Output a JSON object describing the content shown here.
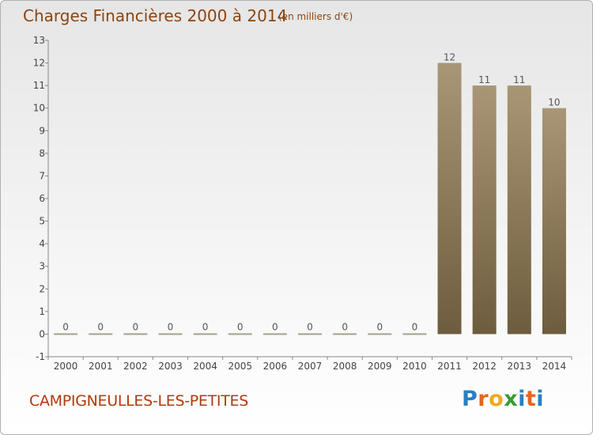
{
  "header": {
    "title": "Charges Financières 2000 à 2014",
    "subtitle": "(en milliers d'€)"
  },
  "footer": {
    "place_name": "CAMPIGNEULLES-LES-PETITES",
    "logo_letters": [
      "P",
      "r",
      "o",
      "x",
      "i",
      "t",
      "i"
    ],
    "logo_colors": [
      "#2a7fc1",
      "#e8641b",
      "#f2a81d",
      "#3a9a36",
      "#2a7fc1",
      "#e8641b",
      "#2a7fc1"
    ]
  },
  "chart_data": {
    "type": "bar",
    "title": "Charges Financières 2000 à 2014",
    "subtitle": "(en milliers d'€)",
    "categories": [
      "2000",
      "2001",
      "2002",
      "2003",
      "2004",
      "2005",
      "2006",
      "2007",
      "2008",
      "2009",
      "2010",
      "2011",
      "2012",
      "2013",
      "2014"
    ],
    "values": [
      0,
      0,
      0,
      0,
      0,
      0,
      0,
      0,
      0,
      0,
      0,
      12,
      11,
      11,
      10
    ],
    "data_labels": [
      "0",
      "0",
      "0",
      "0",
      "0",
      "0",
      "0",
      "0",
      "0",
      "0",
      "0",
      "12",
      "11",
      "11",
      "10"
    ],
    "xlabel": "",
    "ylabel": "",
    "ylim": [
      -1,
      13
    ],
    "yticks": [
      -1,
      0,
      1,
      2,
      3,
      4,
      5,
      6,
      7,
      8,
      9,
      10,
      11,
      12,
      13
    ],
    "grid": false,
    "legend": "none",
    "colors": {
      "bar_top": "#a89676",
      "bar_bottom": "#6e5c3e",
      "zero_bar": "#a8a08c",
      "axis": "#888888"
    }
  }
}
